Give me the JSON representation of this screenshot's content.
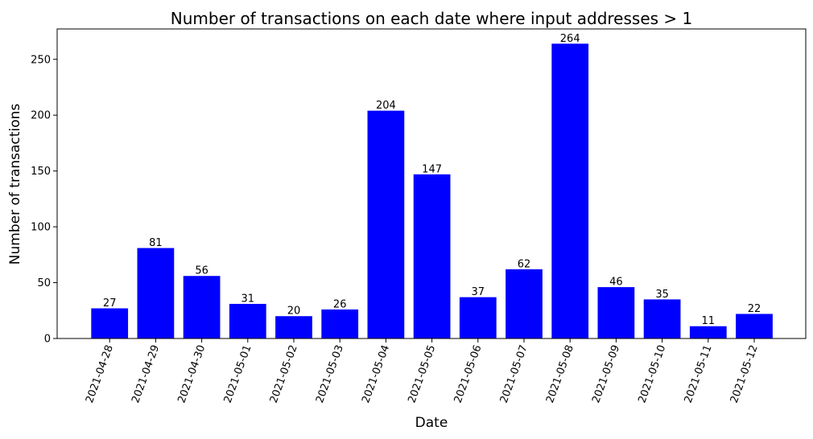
{
  "chart_data": {
    "type": "bar",
    "title": "Number of transactions on each date where input addresses > 1",
    "xlabel": "Date",
    "ylabel": "Number of transactions",
    "categories": [
      "2021-04-28",
      "2021-04-29",
      "2021-04-30",
      "2021-05-01",
      "2021-05-02",
      "2021-05-03",
      "2021-05-04",
      "2021-05-05",
      "2021-05-06",
      "2021-05-07",
      "2021-05-08",
      "2021-05-09",
      "2021-05-10",
      "2021-05-11",
      "2021-05-12"
    ],
    "values": [
      27,
      81,
      56,
      31,
      20,
      26,
      204,
      147,
      37,
      62,
      264,
      46,
      35,
      11,
      22
    ],
    "ylim": [
      0,
      277.2
    ],
    "yticks": [
      0,
      50,
      100,
      150,
      200,
      250
    ],
    "bar_color": "#0000ff",
    "grid": false,
    "legend": "none",
    "data_labels": true,
    "x_tick_rotation": "70deg"
  }
}
